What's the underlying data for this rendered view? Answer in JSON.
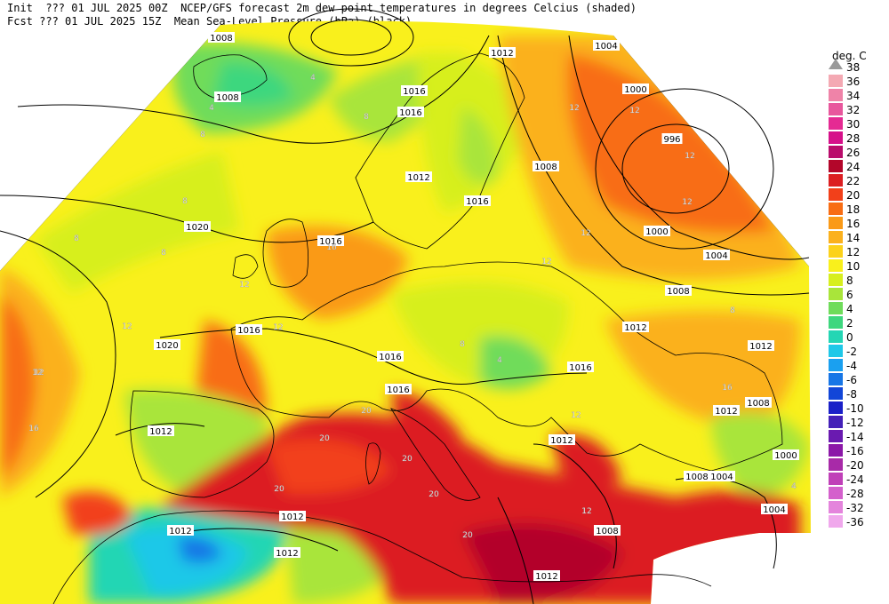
{
  "header": {
    "line1": "Init  ??? 01 JUL 2025 00Z  NCEP/GFS forecast 2m dew point temperatures in degrees Celcius (shaded)",
    "line2": "Fcst ??? 01 JUL 2025 15Z  Mean Sea-Level Pressure (hPa) (black)."
  },
  "legend": {
    "title": "deg. C",
    "entries": [
      {
        "label": "38",
        "color": "#ffffff"
      },
      {
        "label": "36",
        "color": "#f4a9b3"
      },
      {
        "label": "34",
        "color": "#ef83a8"
      },
      {
        "label": "32",
        "color": "#e8579d"
      },
      {
        "label": "30",
        "color": "#e52a93"
      },
      {
        "label": "28",
        "color": "#d6108a"
      },
      {
        "label": "26",
        "color": "#b90c6b"
      },
      {
        "label": "24",
        "color": "#b3062a"
      },
      {
        "label": "22",
        "color": "#dc1f22"
      },
      {
        "label": "20",
        "color": "#f2401a"
      },
      {
        "label": "18",
        "color": "#f86d14"
      },
      {
        "label": "16",
        "color": "#fa9a18"
      },
      {
        "label": "14",
        "color": "#fbb11d"
      },
      {
        "label": "12",
        "color": "#fcd21b"
      },
      {
        "label": "10",
        "color": "#f9f01c"
      },
      {
        "label": "8",
        "color": "#d7ef1f"
      },
      {
        "label": "6",
        "color": "#a9e53a"
      },
      {
        "label": "4",
        "color": "#6fdc5a"
      },
      {
        "label": "2",
        "color": "#3ed77e"
      },
      {
        "label": "0",
        "color": "#24d6b4"
      },
      {
        "label": "-2",
        "color": "#1ec8e8"
      },
      {
        "label": "-4",
        "color": "#1aa0f0"
      },
      {
        "label": "-6",
        "color": "#1776e6"
      },
      {
        "label": "-8",
        "color": "#1246d8"
      },
      {
        "label": "-10",
        "color": "#1a20c8"
      },
      {
        "label": "-12",
        "color": "#4420b8"
      },
      {
        "label": "-14",
        "color": "#6a1ab0"
      },
      {
        "label": "-16",
        "color": "#8c18a8"
      },
      {
        "label": "-20",
        "color": "#a82aa8"
      },
      {
        "label": "-24",
        "color": "#c040b8"
      },
      {
        "label": "-28",
        "color": "#d460cc"
      },
      {
        "label": "-32",
        "color": "#e484dc"
      },
      {
        "label": "-36",
        "color": "#f0a8ec"
      }
    ]
  },
  "isobar_labels": [
    {
      "text": "1008"
    },
    {
      "text": "1012"
    },
    {
      "text": "1004"
    },
    {
      "text": "1008"
    },
    {
      "text": "1016"
    },
    {
      "text": "1016"
    },
    {
      "text": "1000"
    },
    {
      "text": "996"
    },
    {
      "text": "1008"
    },
    {
      "text": "1012"
    },
    {
      "text": "1016"
    },
    {
      "text": "1020"
    },
    {
      "text": "1016"
    },
    {
      "text": "1000"
    },
    {
      "text": "1004"
    },
    {
      "text": "1008"
    },
    {
      "text": "1020"
    },
    {
      "text": "1016"
    },
    {
      "text": "1012"
    },
    {
      "text": "1016"
    },
    {
      "text": "1016"
    },
    {
      "text": "1012"
    },
    {
      "text": "1016"
    },
    {
      "text": "1012"
    },
    {
      "text": "1008"
    },
    {
      "text": "1012"
    },
    {
      "text": "1012"
    },
    {
      "text": "1008"
    },
    {
      "text": "1004"
    },
    {
      "text": "1000"
    },
    {
      "text": "1004"
    },
    {
      "text": "1008"
    },
    {
      "text": "1012"
    },
    {
      "text": "1012"
    },
    {
      "text": "1012"
    },
    {
      "text": "1012"
    }
  ],
  "contour_labels": [
    {
      "text": "4"
    },
    {
      "text": "8"
    },
    {
      "text": "4"
    },
    {
      "text": "8"
    },
    {
      "text": "8"
    },
    {
      "text": "12"
    },
    {
      "text": "12"
    },
    {
      "text": "12"
    },
    {
      "text": "16"
    },
    {
      "text": "12"
    },
    {
      "text": "8"
    },
    {
      "text": "8"
    },
    {
      "text": "12"
    },
    {
      "text": "12"
    },
    {
      "text": "16"
    },
    {
      "text": "12"
    },
    {
      "text": "20"
    },
    {
      "text": "20"
    },
    {
      "text": "20"
    },
    {
      "text": "20"
    },
    {
      "text": "20"
    },
    {
      "text": "20"
    },
    {
      "text": "12"
    },
    {
      "text": "4"
    },
    {
      "text": "8"
    },
    {
      "text": "12"
    },
    {
      "text": "12"
    },
    {
      "text": "4"
    },
    {
      "text": "16"
    },
    {
      "text": "12"
    },
    {
      "text": "8"
    },
    {
      "text": "12"
    },
    {
      "text": "12"
    }
  ]
}
